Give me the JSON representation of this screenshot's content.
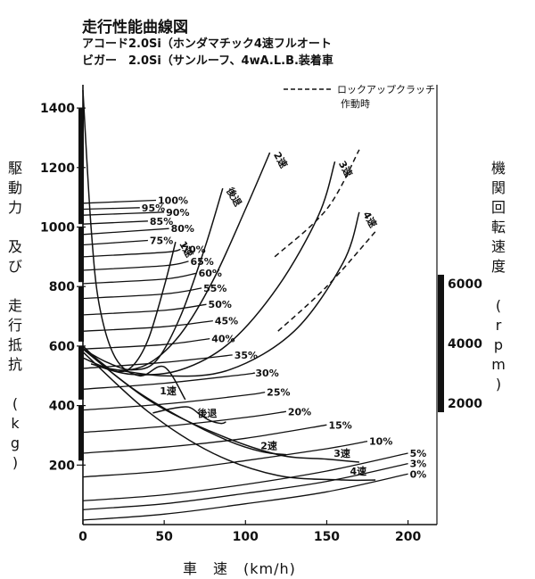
{
  "header": {
    "title": "走行性能曲線図",
    "line1": "アコード2.0Si（ホンダマチック4速フルオート",
    "line2": "ビガー　2.0Si（サンルーフ、4wA.L.B.装着車"
  },
  "chart_data": {
    "type": "line",
    "xlabel": "車　速　(km/h)",
    "ylabel": "駆動力 及び 走行抵抗 (kg)",
    "y2label": "機関回転速度 (rpm)",
    "xlim": [
      0,
      220
    ],
    "ylim": [
      0,
      1400
    ],
    "xticks": [
      "0",
      "50",
      "100",
      "150",
      "200"
    ],
    "yticks": [
      "200",
      "400",
      "600",
      "800",
      "1000",
      "1200",
      "1400"
    ],
    "y2ticks": [
      "2000",
      "4000",
      "6000"
    ],
    "legend": {
      "lockup_label": "ロックアップクラッチ",
      "lockup_label2": "作動時"
    },
    "grid": false,
    "drive_force": [
      {
        "name": "1速",
        "x": [
          0,
          10,
          20,
          30,
          40,
          50,
          57
        ],
        "y": [
          600,
          550,
          515,
          530,
          620,
          800,
          950
        ]
      },
      {
        "name": "後退",
        "x": [
          0,
          15,
          30,
          45,
          60,
          75,
          86
        ],
        "y": [
          590,
          545,
          520,
          550,
          700,
          930,
          1130
        ]
      },
      {
        "name": "2速",
        "x": [
          0,
          20,
          40,
          60,
          80,
          100,
          115
        ],
        "y": [
          560,
          520,
          540,
          640,
          820,
          1060,
          1250
        ]
      },
      {
        "name": "3速",
        "x": [
          5,
          30,
          60,
          90,
          120,
          145,
          155
        ],
        "y": [
          540,
          505,
          520,
          610,
          800,
          1040,
          1220
        ]
      },
      {
        "name": "4速",
        "x": [
          10,
          50,
          90,
          130,
          160,
          170
        ],
        "y": [
          530,
          500,
          520,
          650,
          880,
          1050
        ]
      }
    ],
    "lockup": [
      {
        "name": "3速",
        "x": [
          118,
          150,
          170
        ],
        "y": [
          900,
          1060,
          1260
        ]
      },
      {
        "name": "4速",
        "x": [
          120,
          150,
          180
        ],
        "y": [
          650,
          800,
          985
        ]
      }
    ],
    "gear_low_speed": [
      {
        "name": "1速",
        "x": [
          0,
          5,
          10,
          20,
          35,
          50,
          63
        ],
        "y": [
          1460,
          1000,
          740,
          560,
          500,
          530,
          420
        ]
      },
      {
        "name": "後退",
        "x": [
          43,
          55,
          65,
          72,
          78,
          85,
          88
        ],
        "y": [
          375,
          390,
          395,
          370,
          350,
          340,
          345
        ]
      },
      {
        "name": "2速",
        "x": [
          0,
          30,
          60,
          90,
          110,
          125
        ],
        "y": [
          590,
          460,
          360,
          280,
          245,
          235
        ]
      },
      {
        "name": "3速",
        "x": [
          0,
          40,
          80,
          120,
          150,
          170
        ],
        "y": [
          590,
          420,
          310,
          235,
          220,
          210
        ]
      },
      {
        "name": "4速",
        "x": [
          0,
          40,
          80,
          120,
          160,
          180
        ],
        "y": [
          580,
          380,
          240,
          165,
          150,
          150
        ]
      }
    ],
    "resistance": [
      {
        "name": "0%",
        "x": [
          0,
          50,
          100,
          150,
          200
        ],
        "y": [
          15,
          35,
          70,
          110,
          170
        ]
      },
      {
        "name": "3%",
        "x": [
          0,
          50,
          100,
          150,
          200
        ],
        "y": [
          50,
          70,
          105,
          145,
          205
        ]
      },
      {
        "name": "5%",
        "x": [
          0,
          50,
          100,
          150,
          200
        ],
        "y": [
          80,
          100,
          135,
          180,
          240
        ]
      },
      {
        "name": "10%",
        "x": [
          0,
          50,
          100,
          150,
          175
        ],
        "y": [
          160,
          180,
          215,
          255,
          280
        ]
      },
      {
        "name": "15%",
        "x": [
          0,
          50,
          100,
          150
        ],
        "y": [
          240,
          260,
          290,
          335
        ]
      },
      {
        "name": "20%",
        "x": [
          0,
          50,
          100,
          125
        ],
        "y": [
          310,
          330,
          360,
          380
        ]
      },
      {
        "name": "25%",
        "x": [
          0,
          50,
          100,
          112
        ],
        "y": [
          385,
          405,
          435,
          445
        ]
      },
      {
        "name": "30%",
        "x": [
          0,
          50,
          100,
          105
        ],
        "y": [
          455,
          475,
          505,
          510
        ]
      },
      {
        "name": "35%",
        "x": [
          0,
          50,
          92
        ],
        "y": [
          525,
          545,
          570
        ]
      },
      {
        "name": "40%",
        "x": [
          0,
          50,
          78
        ],
        "y": [
          590,
          605,
          625
        ]
      },
      {
        "name": "45%",
        "x": [
          0,
          50,
          80
        ],
        "y": [
          650,
          665,
          685
        ]
      },
      {
        "name": "50%",
        "x": [
          0,
          50,
          76
        ],
        "y": [
          705,
          720,
          740
        ]
      },
      {
        "name": "55%",
        "x": [
          0,
          50,
          73
        ],
        "y": [
          760,
          775,
          795
        ]
      },
      {
        "name": "60%",
        "x": [
          0,
          50,
          70
        ],
        "y": [
          810,
          825,
          845
        ]
      },
      {
        "name": "65%",
        "x": [
          0,
          50,
          65
        ],
        "y": [
          855,
          870,
          885
        ]
      },
      {
        "name": "70%",
        "x": [
          0,
          50,
          60
        ],
        "y": [
          900,
          915,
          925
        ]
      },
      {
        "name": "75%",
        "x": [
          0,
          40
        ],
        "y": [
          940,
          955
        ]
      },
      {
        "name": "80%",
        "x": [
          0,
          53
        ],
        "y": [
          975,
          995
        ]
      },
      {
        "name": "85%",
        "x": [
          0,
          40
        ],
        "y": [
          1010,
          1020
        ]
      },
      {
        "name": "90%",
        "x": [
          0,
          50
        ],
        "y": [
          1040,
          1050
        ]
      },
      {
        "name": "95%",
        "x": [
          0,
          35
        ],
        "y": [
          1060,
          1065
        ]
      },
      {
        "name": "100%",
        "x": [
          0,
          45
        ],
        "y": [
          1080,
          1090
        ]
      }
    ]
  }
}
